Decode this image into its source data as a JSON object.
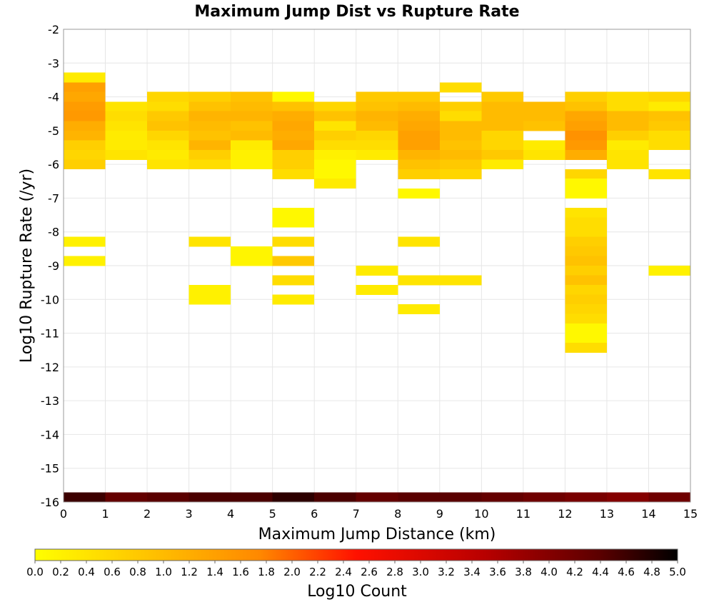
{
  "chart_data": {
    "type": "heatmap",
    "title": "Maximum Jump Dist vs Rupture Rate",
    "xlabel": "Maximum Jump Distance (km)",
    "ylabel": "Log10 Rupture Rate (/yr)",
    "colorbar_label": "Log10 Count",
    "xlim": [
      0,
      15
    ],
    "ylim": [
      -16,
      -2
    ],
    "x_ticks": [
      0,
      1,
      2,
      3,
      4,
      5,
      6,
      7,
      8,
      9,
      10,
      11,
      12,
      13,
      14,
      15
    ],
    "y_ticks": [
      -2,
      -3,
      -4,
      -5,
      -6,
      -7,
      -8,
      -9,
      -10,
      -11,
      -12,
      -13,
      -14,
      -15,
      -16
    ],
    "color_range": [
      0.0,
      5.0
    ],
    "colorbar_ticks": [
      "0.0",
      "0.2",
      "0.4",
      "0.6",
      "0.8",
      "1.0",
      "1.2",
      "1.4",
      "1.6",
      "1.8",
      "2.0",
      "2.2",
      "2.4",
      "2.6",
      "2.8",
      "3.0",
      "3.2",
      "3.4",
      "3.6",
      "3.8",
      "4.0",
      "4.2",
      "4.4",
      "4.6",
      "4.8",
      "5.0"
    ],
    "bin_size": {
      "x": 1,
      "y": 0.2857
    },
    "bins": [
      [
        0,
        -3.57,
        0.3
      ],
      [
        0,
        -3.86,
        1.4
      ],
      [
        0,
        -4.14,
        1.3
      ],
      [
        0,
        -4.43,
        1.45
      ],
      [
        0,
        -4.71,
        1.5
      ],
      [
        0,
        -5.0,
        1.2
      ],
      [
        0,
        -5.29,
        1.1
      ],
      [
        0,
        -5.57,
        0.7
      ],
      [
        0,
        -5.86,
        0.6
      ],
      [
        0,
        -6.14,
        0.7
      ],
      [
        0,
        -8.43,
        0.2
      ],
      [
        0,
        -9.0,
        0.2
      ],
      [
        1,
        -4.43,
        0.4
      ],
      [
        1,
        -4.71,
        0.5
      ],
      [
        1,
        -5.0,
        0.4
      ],
      [
        1,
        -5.29,
        0.3
      ],
      [
        1,
        -5.57,
        0.3
      ],
      [
        1,
        -5.86,
        0.4
      ],
      [
        2,
        -4.14,
        0.6
      ],
      [
        2,
        -4.43,
        0.5
      ],
      [
        2,
        -4.71,
        0.8
      ],
      [
        2,
        -5.0,
        0.9
      ],
      [
        2,
        -5.29,
        0.6
      ],
      [
        2,
        -5.57,
        0.4
      ],
      [
        2,
        -5.86,
        0.3
      ],
      [
        2,
        -6.14,
        0.4
      ],
      [
        3,
        -4.14,
        0.7
      ],
      [
        3,
        -4.43,
        0.9
      ],
      [
        3,
        -4.71,
        1.1
      ],
      [
        3,
        -5.0,
        1.0
      ],
      [
        3,
        -5.29,
        0.9
      ],
      [
        3,
        -5.57,
        1.1
      ],
      [
        3,
        -5.86,
        0.7
      ],
      [
        3,
        -6.14,
        0.5
      ],
      [
        3,
        -8.43,
        0.4
      ],
      [
        3,
        -9.86,
        0.2
      ],
      [
        3,
        -10.14,
        0.2
      ],
      [
        4,
        -4.14,
        0.9
      ],
      [
        4,
        -4.43,
        1.0
      ],
      [
        4,
        -4.71,
        1.1
      ],
      [
        4,
        -5.0,
        0.9
      ],
      [
        4,
        -5.29,
        1.0
      ],
      [
        4,
        -5.57,
        0.3
      ],
      [
        4,
        -5.86,
        0.2
      ],
      [
        4,
        -6.14,
        0.2
      ],
      [
        4,
        -8.71,
        0.15
      ],
      [
        4,
        -9.0,
        0.15
      ],
      [
        5,
        -4.14,
        0.1
      ],
      [
        5,
        -4.43,
        0.9
      ],
      [
        5,
        -4.71,
        1.2
      ],
      [
        5,
        -5.0,
        1.3
      ],
      [
        5,
        -5.29,
        1.2
      ],
      [
        5,
        -5.57,
        1.3
      ],
      [
        5,
        -5.86,
        0.7
      ],
      [
        5,
        -6.14,
        0.7
      ],
      [
        5,
        -6.43,
        0.5
      ],
      [
        5,
        -7.57,
        0.1
      ],
      [
        5,
        -7.86,
        0.1
      ],
      [
        5,
        -8.43,
        0.5
      ],
      [
        5,
        -9.0,
        0.8
      ],
      [
        5,
        -9.57,
        0.5
      ],
      [
        5,
        -10.14,
        0.3
      ],
      [
        6,
        -4.43,
        0.6
      ],
      [
        6,
        -4.71,
        0.9
      ],
      [
        6,
        -5.0,
        0.4
      ],
      [
        6,
        -5.29,
        0.7
      ],
      [
        6,
        -5.57,
        0.5
      ],
      [
        6,
        -5.86,
        0.2
      ],
      [
        6,
        -6.14,
        0.1
      ],
      [
        6,
        -6.43,
        0.1
      ],
      [
        6,
        -6.71,
        0.3
      ],
      [
        7,
        -4.14,
        0.8
      ],
      [
        7,
        -4.43,
        0.9
      ],
      [
        7,
        -4.71,
        1.1
      ],
      [
        7,
        -5.0,
        1.0
      ],
      [
        7,
        -5.29,
        0.6
      ],
      [
        7,
        -5.57,
        0.5
      ],
      [
        7,
        -5.86,
        0.3
      ],
      [
        7,
        -9.29,
        0.3
      ],
      [
        7,
        -9.86,
        0.3
      ],
      [
        8,
        -4.14,
        0.8
      ],
      [
        8,
        -4.43,
        1.0
      ],
      [
        8,
        -4.71,
        1.2
      ],
      [
        8,
        -5.0,
        1.3
      ],
      [
        8,
        -5.29,
        1.4
      ],
      [
        8,
        -5.57,
        1.4
      ],
      [
        8,
        -5.86,
        1.1
      ],
      [
        8,
        -6.14,
        0.9
      ],
      [
        8,
        -6.43,
        0.7
      ],
      [
        8,
        -7.0,
        0.1
      ],
      [
        8,
        -8.43,
        0.4
      ],
      [
        8,
        -9.57,
        0.4
      ],
      [
        8,
        -10.43,
        0.3
      ],
      [
        9,
        -3.86,
        0.5
      ],
      [
        9,
        -4.43,
        0.7
      ],
      [
        9,
        -4.71,
        0.5
      ],
      [
        9,
        -5.0,
        1.0
      ],
      [
        9,
        -5.29,
        1.0
      ],
      [
        9,
        -5.57,
        0.9
      ],
      [
        9,
        -5.86,
        1.0
      ],
      [
        9,
        -6.14,
        0.8
      ],
      [
        9,
        -6.43,
        0.6
      ],
      [
        9,
        -9.57,
        0.4
      ],
      [
        10,
        -4.14,
        0.8
      ],
      [
        10,
        -4.43,
        1.0
      ],
      [
        10,
        -4.71,
        1.0
      ],
      [
        10,
        -5.0,
        1.0
      ],
      [
        10,
        -5.29,
        0.6
      ],
      [
        10,
        -5.57,
        0.6
      ],
      [
        10,
        -5.86,
        0.8
      ],
      [
        10,
        -6.14,
        0.3
      ],
      [
        11,
        -4.43,
        1.0
      ],
      [
        11,
        -4.71,
        1.0
      ],
      [
        11,
        -5.0,
        0.9
      ],
      [
        11,
        -5.57,
        0.3
      ],
      [
        11,
        -5.86,
        0.4
      ],
      [
        12,
        -4.14,
        0.7
      ],
      [
        12,
        -4.43,
        0.9
      ],
      [
        12,
        -4.71,
        1.3
      ],
      [
        12,
        -5.0,
        1.4
      ],
      [
        12,
        -5.29,
        1.6
      ],
      [
        12,
        -5.57,
        1.5
      ],
      [
        12,
        -5.86,
        1.2
      ],
      [
        12,
        -6.43,
        0.6
      ],
      [
        12,
        -6.71,
        0.1
      ],
      [
        12,
        -7.0,
        0.1
      ],
      [
        12,
        -7.57,
        0.4
      ],
      [
        12,
        -7.86,
        0.5
      ],
      [
        12,
        -8.14,
        0.5
      ],
      [
        12,
        -8.43,
        0.7
      ],
      [
        12,
        -8.71,
        0.8
      ],
      [
        12,
        -9.0,
        0.9
      ],
      [
        12,
        -9.29,
        0.7
      ],
      [
        12,
        -9.57,
        0.9
      ],
      [
        12,
        -9.86,
        0.6
      ],
      [
        12,
        -10.14,
        0.7
      ],
      [
        12,
        -10.43,
        0.6
      ],
      [
        12,
        -10.71,
        0.5
      ],
      [
        12,
        -11.0,
        0.1
      ],
      [
        12,
        -11.29,
        0.1
      ],
      [
        12,
        -11.57,
        0.5
      ],
      [
        13,
        -4.14,
        0.5
      ],
      [
        13,
        -4.43,
        0.5
      ],
      [
        13,
        -4.71,
        1.0
      ],
      [
        13,
        -5.0,
        1.0
      ],
      [
        13,
        -5.29,
        0.7
      ],
      [
        13,
        -5.57,
        0.3
      ],
      [
        13,
        -5.86,
        0.4
      ],
      [
        13,
        -6.14,
        0.4
      ],
      [
        14,
        -4.14,
        0.6
      ],
      [
        14,
        -4.43,
        0.3
      ],
      [
        14,
        -4.71,
        0.9
      ],
      [
        14,
        -5.0,
        0.8
      ],
      [
        14,
        -5.29,
        0.5
      ],
      [
        14,
        -5.57,
        0.5
      ],
      [
        14,
        -6.43,
        0.4
      ],
      [
        14,
        -9.29,
        0.2
      ],
      [
        0,
        -16.0,
        4.6
      ],
      [
        1,
        -16.0,
        4.3
      ],
      [
        2,
        -16.0,
        4.4
      ],
      [
        3,
        -16.0,
        4.5
      ],
      [
        4,
        -16.0,
        4.5
      ],
      [
        5,
        -16.0,
        4.7
      ],
      [
        6,
        -16.0,
        4.5
      ],
      [
        7,
        -16.0,
        4.3
      ],
      [
        8,
        -16.0,
        4.4
      ],
      [
        9,
        -16.0,
        4.4
      ],
      [
        10,
        -16.0,
        4.3
      ],
      [
        11,
        -16.0,
        4.2
      ],
      [
        12,
        -16.0,
        4.1
      ],
      [
        13,
        -16.0,
        4.0
      ],
      [
        14,
        -16.0,
        4.2
      ]
    ]
  }
}
